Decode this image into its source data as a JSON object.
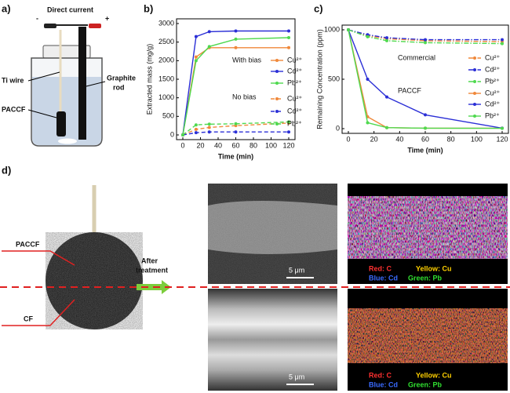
{
  "panel_a": {
    "label": "a)",
    "direct_current": "Direct current",
    "minus": "-",
    "plus": "+",
    "ti_wire": "Ti wire",
    "graphite_rod": [
      "Graphite",
      "rod"
    ],
    "paccf": "PACCF"
  },
  "chart_data": [
    {
      "type": "line",
      "panel_label": "b)",
      "xlabel": "Time (min)",
      "ylabel": "Extracted mass (mg/g)",
      "xlim": [
        0,
        120
      ],
      "xticks": [
        0,
        20,
        40,
        60,
        80,
        100,
        120
      ],
      "ylim": [
        0,
        3000
      ],
      "yticks": [
        0,
        500,
        1000,
        1500,
        2000,
        2500,
        3000
      ],
      "x": [
        0,
        15,
        30,
        60,
        120
      ],
      "series_groups": [
        {
          "label": "With bias",
          "style": "solid",
          "series": [
            {
              "name": "Cu²⁺",
              "color": "#f0883a",
              "values": [
                0,
                2100,
                2350,
                2350,
                2350
              ]
            },
            {
              "name": "Cd²⁺",
              "color": "#2b2fd6",
              "values": [
                0,
                2650,
                2780,
                2800,
                2800
              ]
            },
            {
              "name": "Pb²⁺",
              "color": "#4fd94f",
              "values": [
                0,
                2000,
                2380,
                2580,
                2620
              ]
            }
          ]
        },
        {
          "label": "No bias",
          "style": "dashed",
          "series": [
            {
              "name": "Cu²⁺",
              "color": "#f0883a",
              "values": [
                0,
                150,
                200,
                250,
                320
              ]
            },
            {
              "name": "Cd²⁺",
              "color": "#2b2fd6",
              "values": [
                0,
                60,
                80,
                80,
                80
              ]
            },
            {
              "name": "Pb²⁺",
              "color": "#4fd94f",
              "values": [
                0,
                270,
                290,
                300,
                350
              ]
            }
          ]
        }
      ]
    },
    {
      "type": "line",
      "panel_label": "c)",
      "xlabel": "Time (min)",
      "ylabel": "Remaining Concentration (ppm)",
      "xlim": [
        0,
        120
      ],
      "xticks": [
        0,
        20,
        40,
        60,
        80,
        100,
        120
      ],
      "ylim": [
        0,
        1000
      ],
      "yticks": [
        0,
        500,
        1000
      ],
      "x": [
        0,
        15,
        30,
        60,
        120
      ],
      "series_groups": [
        {
          "label": "Commercial",
          "style": "dashdot",
          "series": [
            {
              "name": "Cu²⁺",
              "color": "#f0883a",
              "values": [
                1000,
                940,
                910,
                890,
                880
              ]
            },
            {
              "name": "Cd²⁺",
              "color": "#2b2fd6",
              "values": [
                1000,
                950,
                920,
                900,
                900
              ]
            },
            {
              "name": "Pb²⁺",
              "color": "#4fd94f",
              "values": [
                1000,
                930,
                890,
                870,
                860
              ]
            }
          ]
        },
        {
          "label": "PACCF",
          "style": "solid",
          "series": [
            {
              "name": "Cu²⁺",
              "color": "#f0883a",
              "values": [
                1000,
                120,
                10,
                5,
                5
              ]
            },
            {
              "name": "Cd²⁺",
              "color": "#2b2fd6",
              "values": [
                1000,
                500,
                320,
                140,
                5
              ]
            },
            {
              "name": "Pb²⁺",
              "color": "#4fd94f",
              "values": [
                1000,
                60,
                10,
                5,
                3
              ]
            }
          ]
        }
      ]
    }
  ],
  "panel_d": {
    "label": "d)",
    "paccf": "PACCF",
    "cf": "CF",
    "after": "After",
    "treatment": "treatment",
    "scale_top": "5 μm",
    "scale_bottom": "5 μm",
    "map_top": {
      "c": "Red: C",
      "cu": "Yellow: Cu",
      "cd": "Blue: Cd",
      "pb": "Green: Pb"
    },
    "map_bottom": {
      "c": "Red: C",
      "cu": "Yellow: Cu",
      "cd": "Blue: Cd",
      "pb": "Green: Pb"
    }
  }
}
